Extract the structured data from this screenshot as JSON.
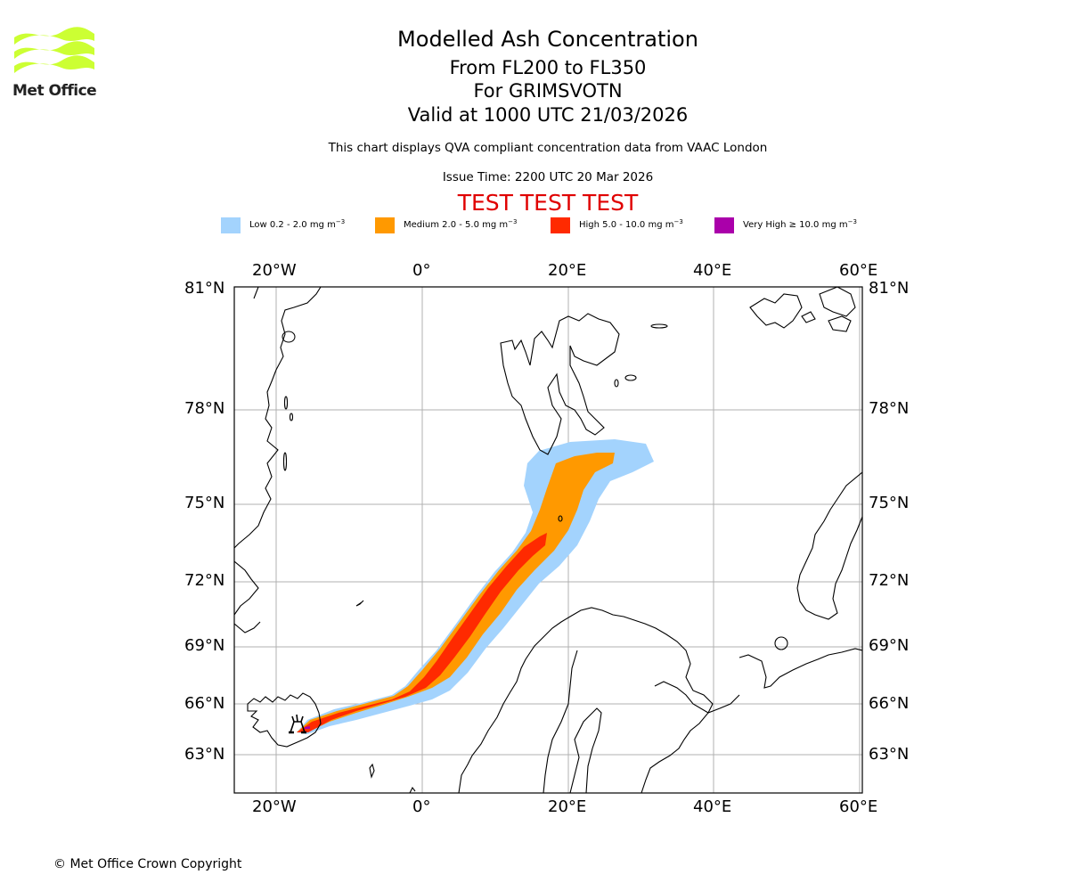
{
  "header": {
    "title": "Modelled Ash Concentration",
    "level_range": "From FL200 to FL350",
    "volcano": "For GRIMSVOTN",
    "validity": "Valid at 1000 UTC 21/03/2026",
    "description": "This chart displays QVA compliant concentration data from VAAC London",
    "issue_time": "Issue Time: 2200 UTC 20 Mar 2026",
    "test_banner": "TEST TEST TEST"
  },
  "logo": {
    "text": "Met Office",
    "color": "#ccff33"
  },
  "legend": [
    {
      "name": "Low",
      "label": "Low 0.2 - 2.0 mg m",
      "exp": "−3",
      "color": "#a3d3fd"
    },
    {
      "name": "Medium",
      "label": "Medium 2.0 - 5.0 mg m",
      "exp": "−3",
      "color": "#ff9900"
    },
    {
      "name": "High",
      "label": "High 5.0 - 10.0 mg m",
      "exp": "−3",
      "color": "#ff2a00"
    },
    {
      "name": "Very High",
      "label": "Very High  ≥  10.0 mg m",
      "exp": "−3",
      "color": "#aa00aa"
    }
  ],
  "map": {
    "lon_ticks": [
      "20°W",
      "0°",
      "20°E",
      "40°E",
      "60°E"
    ],
    "lat_ticks": [
      "81°N",
      "78°N",
      "75°N",
      "72°N",
      "69°N",
      "66°N",
      "63°N"
    ],
    "volcano_symbol": "volcano-icon",
    "grid_color": "#b0b0b0"
  },
  "footer": {
    "copyright": "© Met Office Crown Copyright"
  }
}
